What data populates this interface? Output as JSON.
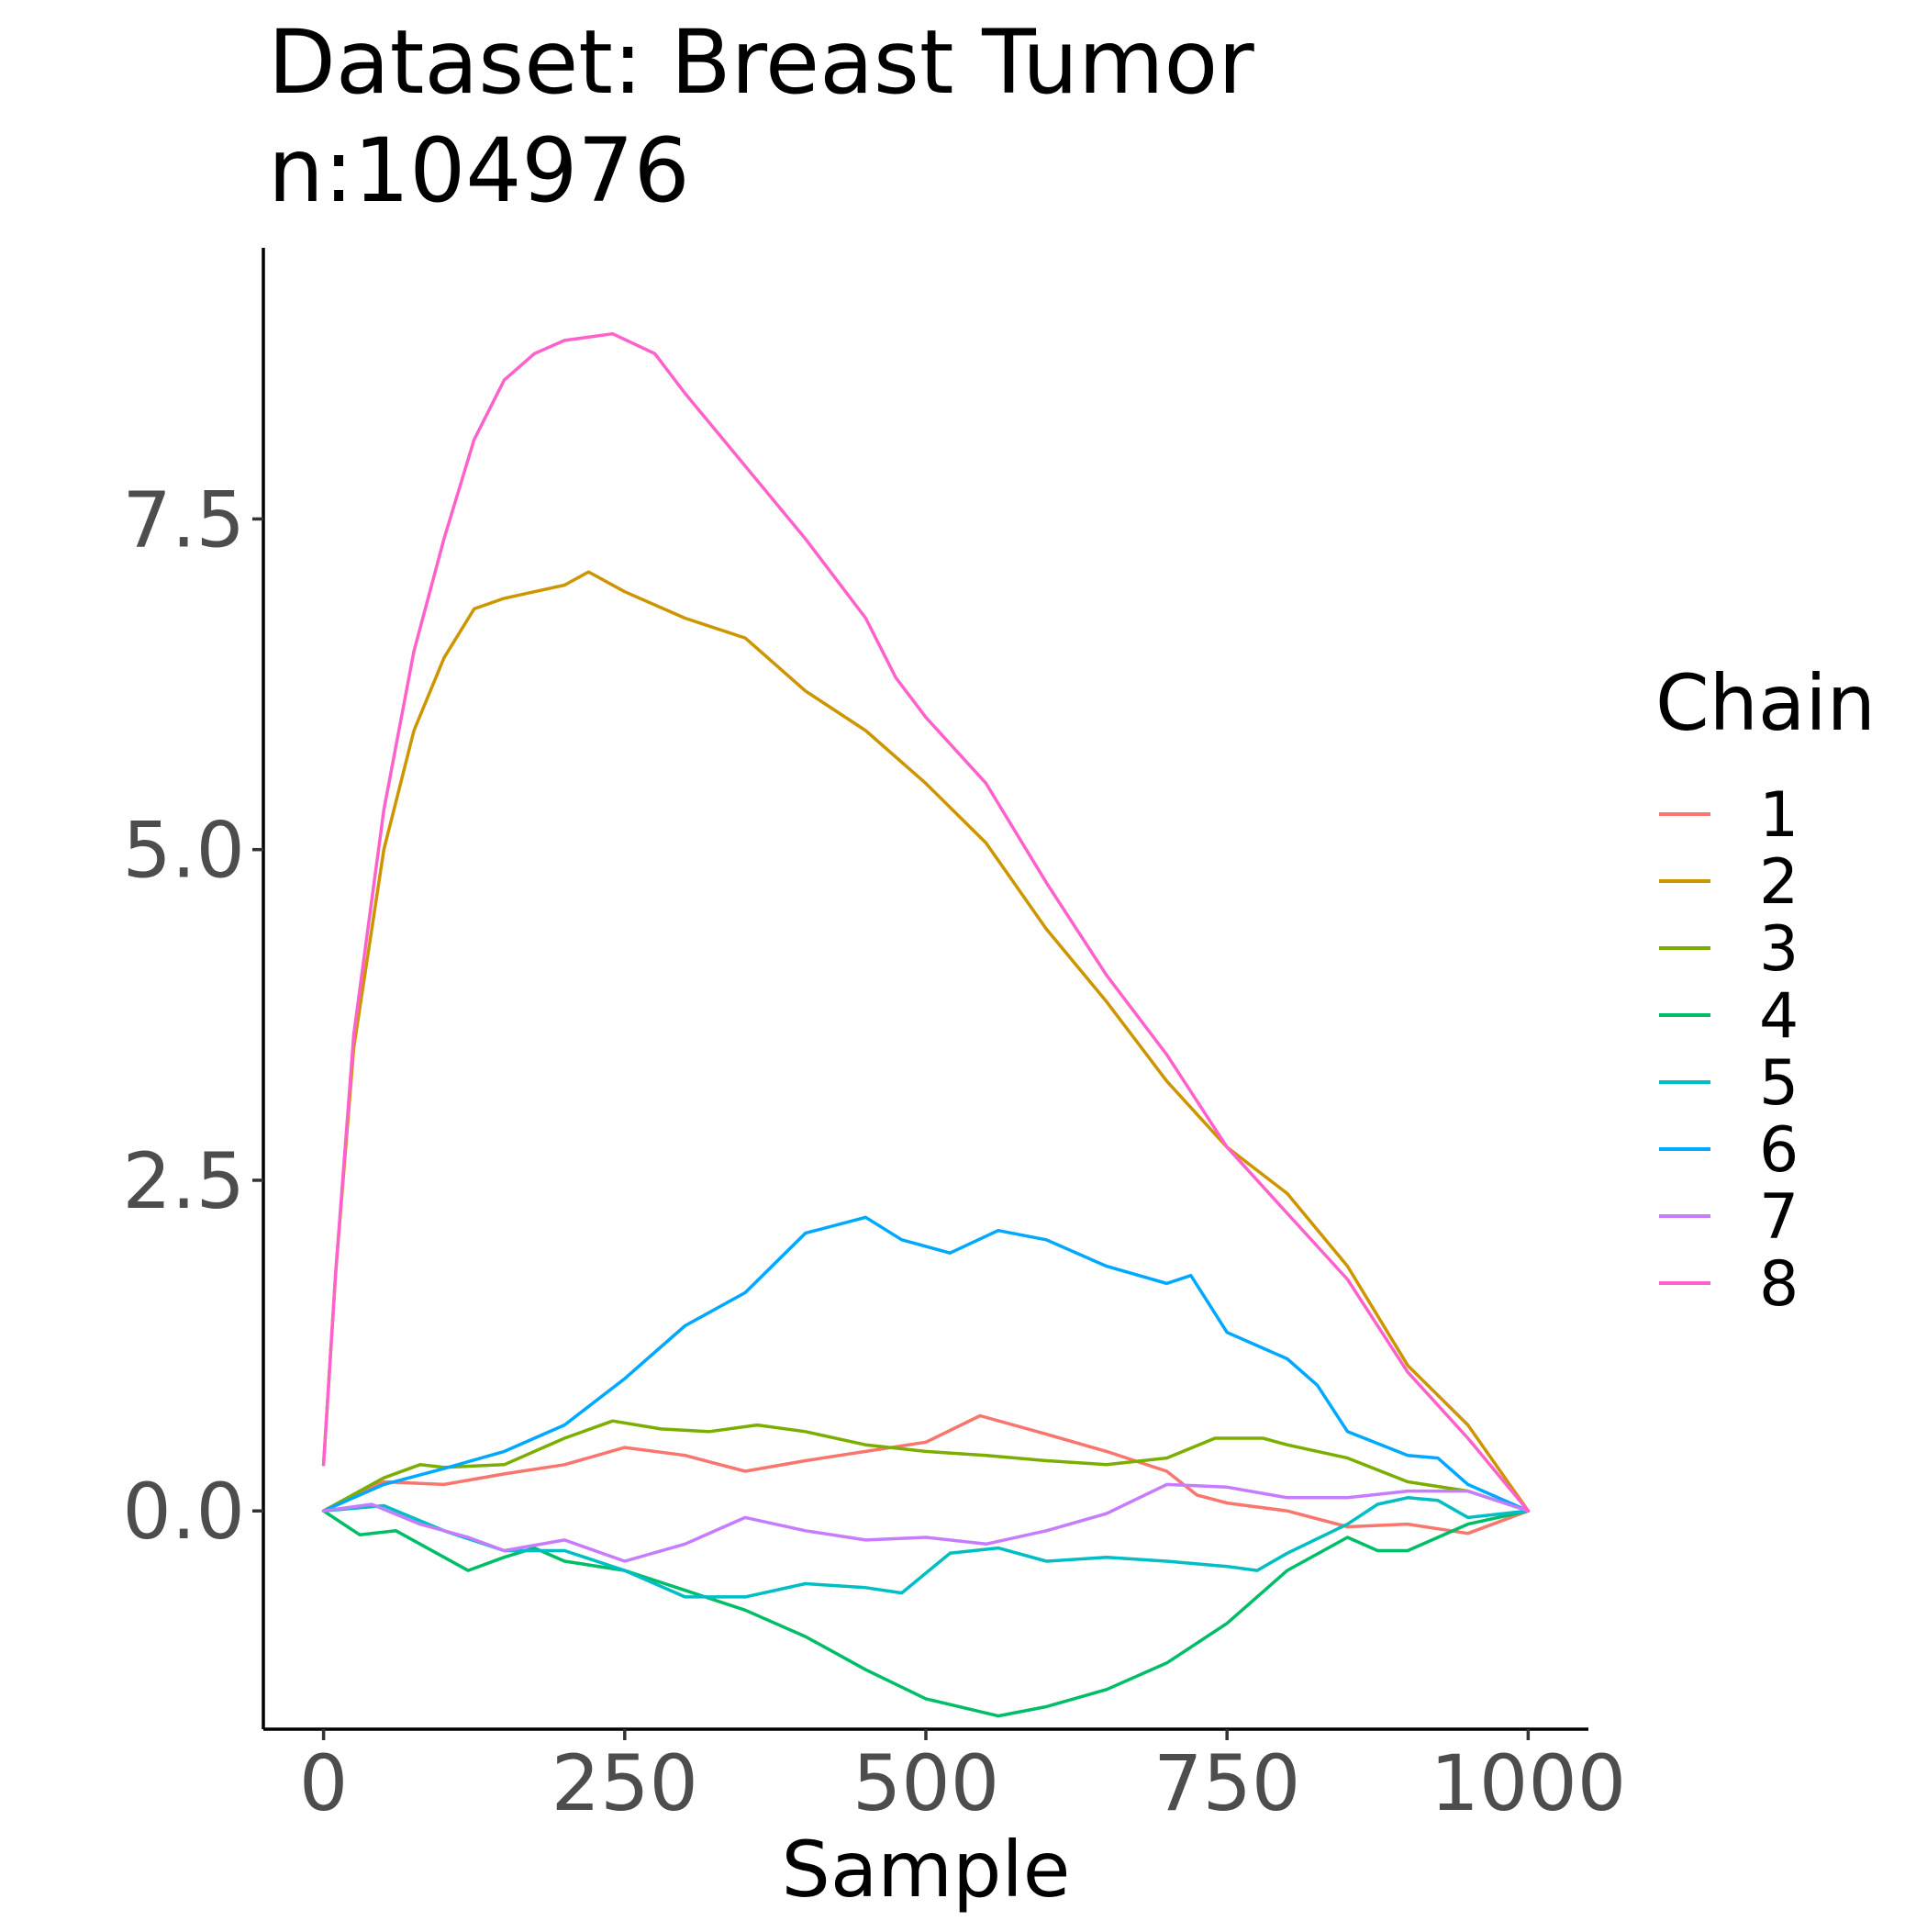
{
  "chart_data": {
    "type": "line",
    "title": "Dataset: Breast Tumor",
    "subtitle": "n:104976",
    "xlabel": "Sample",
    "ylabel": "",
    "xlim": [
      -50,
      1050
    ],
    "ylim": [
      -1.65,
      9.55
    ],
    "xticks": [
      0,
      250,
      500,
      750,
      1000
    ],
    "xtick_labels": [
      "0",
      "250",
      "500",
      "750",
      "1000"
    ],
    "yticks": [
      0,
      2.5,
      5,
      7.5
    ],
    "ytick_labels": [
      "0.0",
      "2.5",
      "5.0",
      "7.5"
    ],
    "grid": false,
    "legend": {
      "title": "Chain",
      "position": "right"
    },
    "series": [
      {
        "name": "1",
        "color": "#F8766D",
        "points": [
          [
            0,
            0
          ],
          [
            50,
            0.22
          ],
          [
            100,
            0.2
          ],
          [
            150,
            0.28
          ],
          [
            200,
            0.35
          ],
          [
            250,
            0.48
          ],
          [
            300,
            0.42
          ],
          [
            350,
            0.3
          ],
          [
            400,
            0.38
          ],
          [
            450,
            0.45
          ],
          [
            500,
            0.52
          ],
          [
            545,
            0.72
          ],
          [
            600,
            0.58
          ],
          [
            650,
            0.45
          ],
          [
            700,
            0.3
          ],
          [
            725,
            0.12
          ],
          [
            750,
            0.06
          ],
          [
            800,
            0.0
          ],
          [
            850,
            -0.12
          ],
          [
            900,
            -0.1
          ],
          [
            950,
            -0.17
          ],
          [
            1000,
            0
          ]
        ]
      },
      {
        "name": "2",
        "color": "#CD9600",
        "points": [
          [
            0,
            0.35
          ],
          [
            10,
            1.8
          ],
          [
            25,
            3.5
          ],
          [
            50,
            5.0
          ],
          [
            75,
            5.9
          ],
          [
            100,
            6.45
          ],
          [
            125,
            6.82
          ],
          [
            150,
            6.9
          ],
          [
            175,
            6.95
          ],
          [
            200,
            7.0
          ],
          [
            220,
            7.1
          ],
          [
            250,
            6.95
          ],
          [
            300,
            6.75
          ],
          [
            350,
            6.6
          ],
          [
            400,
            6.2
          ],
          [
            450,
            5.9
          ],
          [
            500,
            5.5
          ],
          [
            550,
            5.05
          ],
          [
            600,
            4.4
          ],
          [
            650,
            3.85
          ],
          [
            700,
            3.25
          ],
          [
            750,
            2.75
          ],
          [
            800,
            2.4
          ],
          [
            850,
            1.85
          ],
          [
            900,
            1.1
          ],
          [
            950,
            0.65
          ],
          [
            1000,
            0
          ]
        ]
      },
      {
        "name": "3",
        "color": "#7CAE00",
        "points": [
          [
            0,
            0
          ],
          [
            50,
            0.25
          ],
          [
            80,
            0.35
          ],
          [
            100,
            0.33
          ],
          [
            150,
            0.35
          ],
          [
            200,
            0.55
          ],
          [
            240,
            0.68
          ],
          [
            280,
            0.62
          ],
          [
            320,
            0.6
          ],
          [
            360,
            0.65
          ],
          [
            400,
            0.6
          ],
          [
            450,
            0.5
          ],
          [
            500,
            0.45
          ],
          [
            550,
            0.42
          ],
          [
            600,
            0.38
          ],
          [
            650,
            0.35
          ],
          [
            700,
            0.4
          ],
          [
            740,
            0.55
          ],
          [
            780,
            0.55
          ],
          [
            800,
            0.5
          ],
          [
            850,
            0.4
          ],
          [
            900,
            0.22
          ],
          [
            950,
            0.15
          ],
          [
            1000,
            0
          ]
        ]
      },
      {
        "name": "4",
        "color": "#00BE67",
        "points": [
          [
            0,
            0
          ],
          [
            30,
            -0.18
          ],
          [
            60,
            -0.15
          ],
          [
            100,
            -0.35
          ],
          [
            120,
            -0.45
          ],
          [
            150,
            -0.35
          ],
          [
            175,
            -0.28
          ],
          [
            200,
            -0.38
          ],
          [
            250,
            -0.45
          ],
          [
            300,
            -0.6
          ],
          [
            350,
            -0.75
          ],
          [
            400,
            -0.95
          ],
          [
            450,
            -1.2
          ],
          [
            500,
            -1.42
          ],
          [
            560,
            -1.55
          ],
          [
            600,
            -1.48
          ],
          [
            650,
            -1.35
          ],
          [
            700,
            -1.15
          ],
          [
            750,
            -0.85
          ],
          [
            800,
            -0.45
          ],
          [
            850,
            -0.2
          ],
          [
            875,
            -0.3
          ],
          [
            900,
            -0.3
          ],
          [
            950,
            -0.1
          ],
          [
            1000,
            0
          ]
        ]
      },
      {
        "name": "5",
        "color": "#00BFC4",
        "points": [
          [
            0,
            0
          ],
          [
            50,
            0.04
          ],
          [
            100,
            -0.15
          ],
          [
            150,
            -0.3
          ],
          [
            200,
            -0.3
          ],
          [
            250,
            -0.45
          ],
          [
            300,
            -0.65
          ],
          [
            350,
            -0.65
          ],
          [
            400,
            -0.55
          ],
          [
            450,
            -0.58
          ],
          [
            480,
            -0.62
          ],
          [
            520,
            -0.32
          ],
          [
            560,
            -0.28
          ],
          [
            600,
            -0.38
          ],
          [
            650,
            -0.35
          ],
          [
            700,
            -0.38
          ],
          [
            750,
            -0.42
          ],
          [
            775,
            -0.45
          ],
          [
            800,
            -0.32
          ],
          [
            850,
            -0.1
          ],
          [
            875,
            0.05
          ],
          [
            900,
            0.1
          ],
          [
            925,
            0.08
          ],
          [
            950,
            -0.05
          ],
          [
            1000,
            0
          ]
        ]
      },
      {
        "name": "6",
        "color": "#00A9FF",
        "points": [
          [
            0,
            0
          ],
          [
            50,
            0.2
          ],
          [
            100,
            0.32
          ],
          [
            150,
            0.45
          ],
          [
            200,
            0.65
          ],
          [
            250,
            1.0
          ],
          [
            300,
            1.4
          ],
          [
            350,
            1.65
          ],
          [
            400,
            2.1
          ],
          [
            450,
            2.22
          ],
          [
            480,
            2.05
          ],
          [
            520,
            1.95
          ],
          [
            560,
            2.12
          ],
          [
            600,
            2.05
          ],
          [
            650,
            1.85
          ],
          [
            700,
            1.72
          ],
          [
            720,
            1.78
          ],
          [
            750,
            1.35
          ],
          [
            775,
            1.25
          ],
          [
            800,
            1.15
          ],
          [
            825,
            0.95
          ],
          [
            850,
            0.6
          ],
          [
            900,
            0.42
          ],
          [
            925,
            0.4
          ],
          [
            950,
            0.2
          ],
          [
            1000,
            0
          ]
        ]
      },
      {
        "name": "7",
        "color": "#C77CFF",
        "points": [
          [
            0,
            0
          ],
          [
            40,
            0.05
          ],
          [
            80,
            -0.1
          ],
          [
            120,
            -0.2
          ],
          [
            150,
            -0.3
          ],
          [
            200,
            -0.22
          ],
          [
            250,
            -0.38
          ],
          [
            300,
            -0.25
          ],
          [
            350,
            -0.05
          ],
          [
            400,
            -0.15
          ],
          [
            450,
            -0.22
          ],
          [
            500,
            -0.2
          ],
          [
            550,
            -0.25
          ],
          [
            600,
            -0.15
          ],
          [
            650,
            -0.02
          ],
          [
            700,
            0.2
          ],
          [
            750,
            0.18
          ],
          [
            800,
            0.1
          ],
          [
            850,
            0.1
          ],
          [
            900,
            0.15
          ],
          [
            950,
            0.15
          ],
          [
            1000,
            0
          ]
        ]
      },
      {
        "name": "8",
        "color": "#FF61CC",
        "points": [
          [
            0,
            0.35
          ],
          [
            10,
            1.8
          ],
          [
            25,
            3.6
          ],
          [
            50,
            5.3
          ],
          [
            75,
            6.5
          ],
          [
            100,
            7.35
          ],
          [
            125,
            8.1
          ],
          [
            150,
            8.55
          ],
          [
            175,
            8.75
          ],
          [
            200,
            8.85
          ],
          [
            240,
            8.9
          ],
          [
            275,
            8.75
          ],
          [
            300,
            8.45
          ],
          [
            350,
            7.9
          ],
          [
            400,
            7.35
          ],
          [
            450,
            6.75
          ],
          [
            475,
            6.3
          ],
          [
            500,
            6.0
          ],
          [
            550,
            5.5
          ],
          [
            600,
            4.75
          ],
          [
            650,
            4.05
          ],
          [
            700,
            3.45
          ],
          [
            750,
            2.75
          ],
          [
            800,
            2.25
          ],
          [
            850,
            1.75
          ],
          [
            900,
            1.05
          ],
          [
            950,
            0.55
          ],
          [
            1000,
            0
          ]
        ]
      }
    ]
  }
}
